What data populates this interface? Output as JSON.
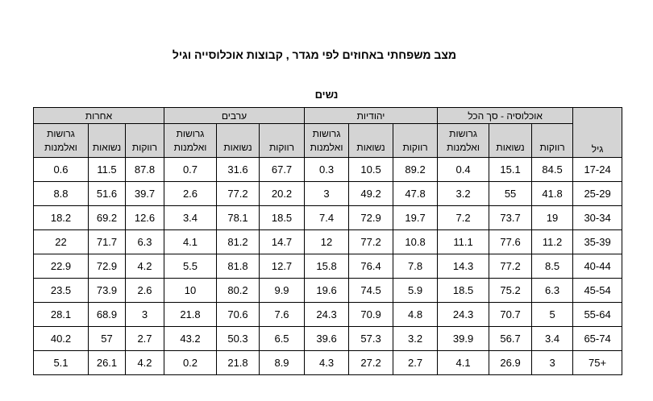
{
  "title": "מצב משפחתי באחוזים לפי מגדר , קבוצות אוכלוסייה וגיל",
  "caption": "נשים",
  "age_header": "גיל",
  "groups": [
    "אחרות",
    "ערבים",
    "יהודיות",
    "אוכלוסיה - סך הכל"
  ],
  "sub": {
    "divorced": "גרושות ואלמנות",
    "married": "נשואות",
    "single": "רווקות"
  },
  "rows": [
    {
      "age": "17-24",
      "v": [
        "0.6",
        "11.5",
        "87.8",
        "0.7",
        "31.6",
        "67.7",
        "0.3",
        "10.5",
        "89.2",
        "0.4",
        "15.1",
        "84.5"
      ]
    },
    {
      "age": "25-29",
      "v": [
        "8.8",
        "51.6",
        "39.7",
        "2.6",
        "77.2",
        "20.2",
        "3",
        "49.2",
        "47.8",
        "3.2",
        "55",
        "41.8"
      ]
    },
    {
      "age": "30-34",
      "v": [
        "18.2",
        "69.2",
        "12.6",
        "3.4",
        "78.1",
        "18.5",
        "7.4",
        "72.9",
        "19.7",
        "7.2",
        "73.7",
        "19"
      ]
    },
    {
      "age": "35-39",
      "v": [
        "22",
        "71.7",
        "6.3",
        "4.1",
        "81.2",
        "14.7",
        "12",
        "77.2",
        "10.8",
        "11.1",
        "77.6",
        "11.2"
      ]
    },
    {
      "age": "40-44",
      "v": [
        "22.9",
        "72.9",
        "4.2",
        "5.5",
        "81.8",
        "12.7",
        "15.8",
        "76.4",
        "7.8",
        "14.3",
        "77.2",
        "8.5"
      ]
    },
    {
      "age": "45-54",
      "v": [
        "23.5",
        "73.9",
        "2.6",
        "10",
        "80.2",
        "9.9",
        "19.6",
        "74.5",
        "5.9",
        "18.5",
        "75.2",
        "6.3"
      ]
    },
    {
      "age": "55-64",
      "v": [
        "28.1",
        "68.9",
        "3",
        "21.8",
        "70.6",
        "7.6",
        "24.3",
        "70.9",
        "4.8",
        "24.3",
        "70.7",
        "5"
      ]
    },
    {
      "age": "65-74",
      "v": [
        "40.2",
        "57",
        "2.7",
        "43.2",
        "50.3",
        "6.5",
        "39.6",
        "57.3",
        "3.2",
        "39.9",
        "56.7",
        "3.4"
      ]
    },
    {
      "age": "75+",
      "v": [
        "5.1",
        "26.1",
        "4.2",
        "0.2",
        "21.8",
        "8.9",
        "4.3",
        "27.2",
        "2.7",
        "4.1",
        "26.9",
        "3"
      ]
    }
  ]
}
